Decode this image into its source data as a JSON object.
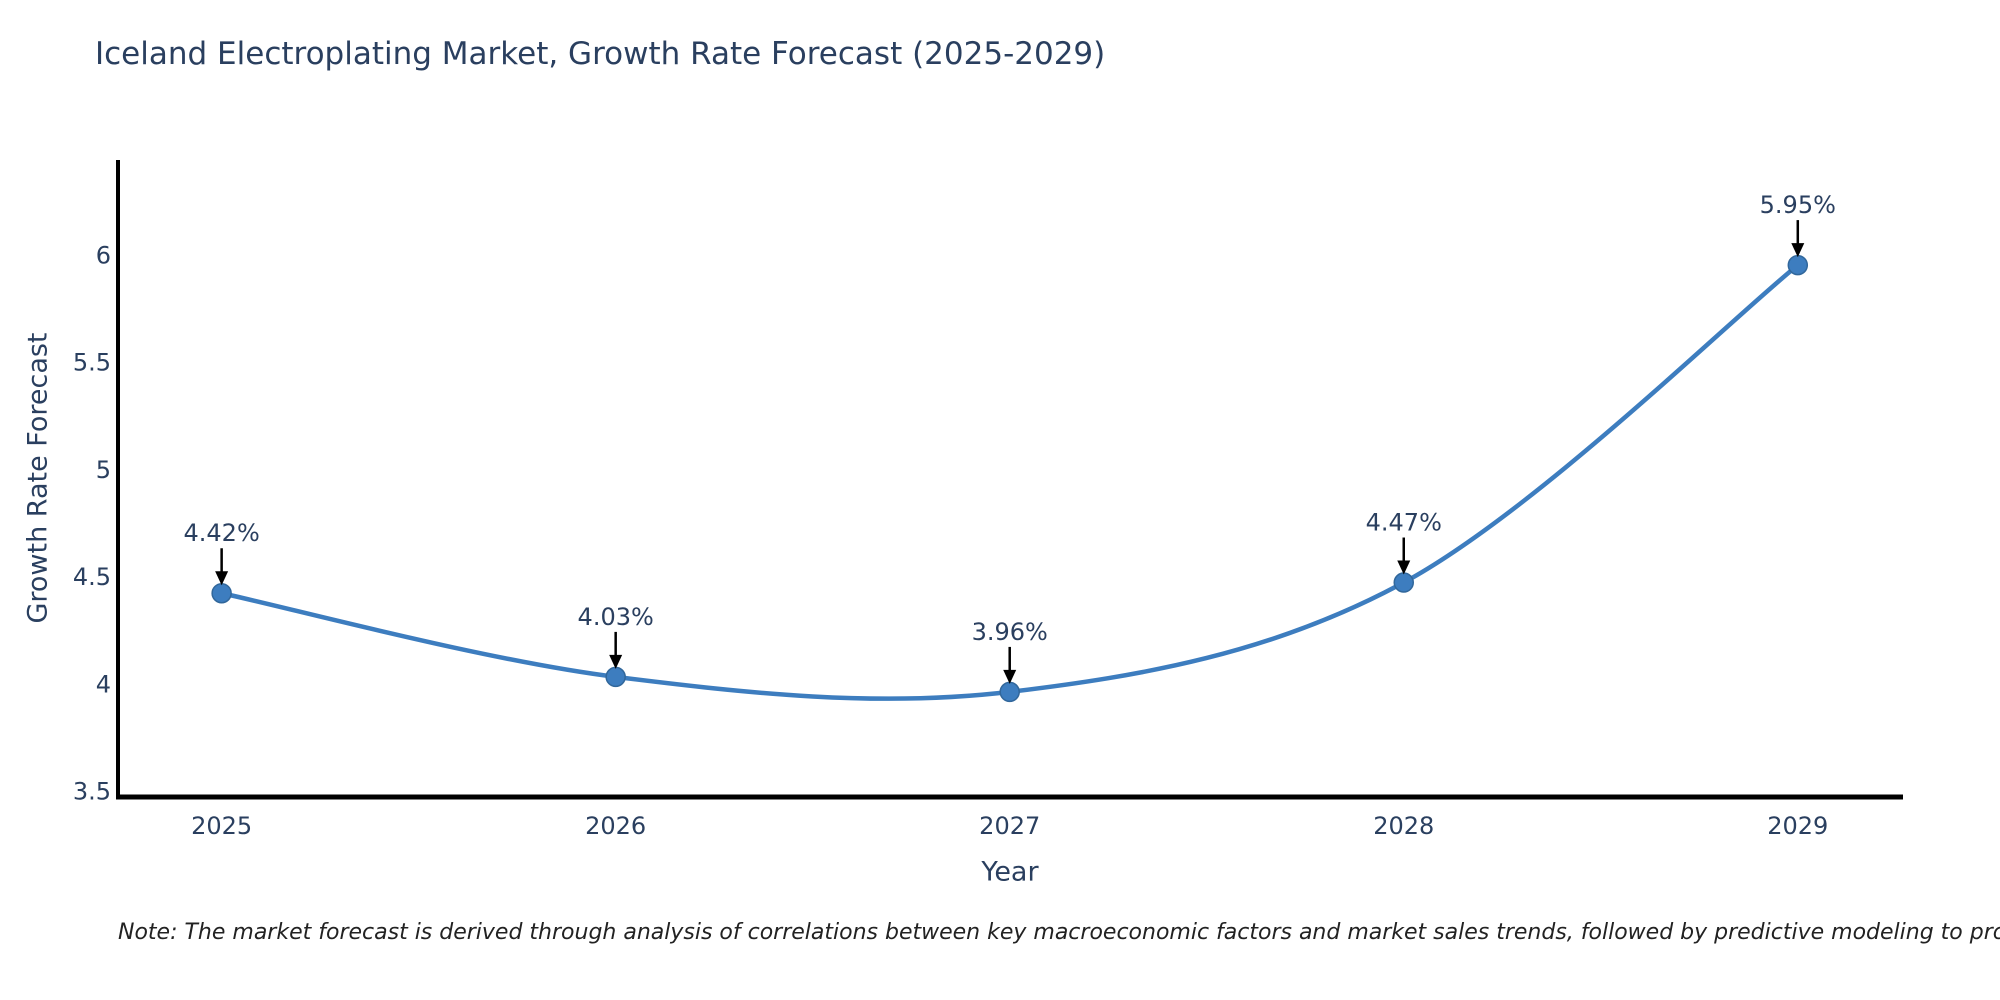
{
  "title": "Iceland Electroplating Market, Growth Rate Forecast (2025-2029)",
  "note": "Note: The market forecast is derived through analysis of correlations between key macroeconomic factors and market sales trends, followed by predictive modeling to project future sales",
  "chart_data": {
    "type": "line",
    "title": "Iceland Electroplating Market, Growth Rate Forecast (2025-2029)",
    "xlabel": "Year",
    "ylabel": "Growth Rate Forecast",
    "x": [
      2025,
      2026,
      2027,
      2028,
      2029
    ],
    "y": [
      4.42,
      4.03,
      3.96,
      4.47,
      5.95
    ],
    "point_labels": [
      "4.42%",
      "4.03%",
      "3.96%",
      "4.47%",
      "5.95%"
    ],
    "xtick_labels": [
      "2025",
      "2026",
      "2027",
      "2028",
      "2029"
    ],
    "xticks": [
      2025,
      2026,
      2027,
      2028,
      2029
    ],
    "ytick_labels": [
      "3.5",
      "4",
      "4.5",
      "5",
      "5.5",
      "6"
    ],
    "yticks": [
      3.5,
      4,
      4.5,
      5,
      5.5,
      6
    ],
    "xlim": [
      2024.737,
      2029.267
    ],
    "ylim": [
      3.47,
      6.44
    ],
    "grid": false,
    "legend": false,
    "curve": "spline",
    "line_color": "#3d7dbf",
    "marker_color": "#3d7dbf",
    "marker_edge_color": "#31679b",
    "annotation_arrow_color": "#000000",
    "axis_color": "#000000",
    "text_color": "#2a3f5f"
  }
}
